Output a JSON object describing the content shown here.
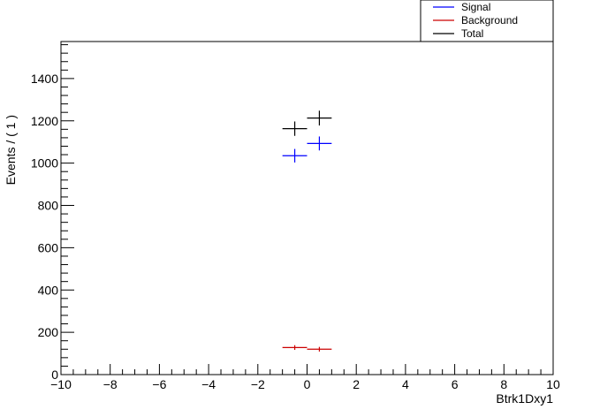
{
  "chart_data": {
    "type": "scatter",
    "title": "",
    "xlabel": "Btrk1Dxy1",
    "ylabel": "Events / ( 1 )",
    "xlim": [
      -10,
      10
    ],
    "ylim": [
      0,
      1575
    ],
    "x_ticks": [
      -10,
      -8,
      -6,
      -4,
      -2,
      0,
      2,
      4,
      6,
      8,
      10
    ],
    "x_tick_labels": [
      "−10",
      "−8",
      "−6",
      "−4",
      "−2",
      "0",
      "2",
      "4",
      "6",
      "8",
      "10"
    ],
    "y_ticks": [
      0,
      200,
      400,
      600,
      800,
      1000,
      1200,
      1400
    ],
    "y_tick_labels": [
      "0",
      "200",
      "400",
      "600",
      "800",
      "1000",
      "1200",
      "1400"
    ],
    "grid": false,
    "legend_position": "top-right",
    "series": [
      {
        "name": "Signal",
        "color": "#0000ff",
        "points": [
          {
            "x": -0.5,
            "xerr": 0.5,
            "y": 1035,
            "yerr": 32
          },
          {
            "x": 0.5,
            "xerr": 0.5,
            "y": 1093,
            "yerr": 33
          }
        ]
      },
      {
        "name": "Background",
        "color": "#cc0000",
        "points": [
          {
            "x": -0.5,
            "xerr": 0.5,
            "y": 128,
            "yerr": 11
          },
          {
            "x": 0.5,
            "xerr": 0.5,
            "y": 120,
            "yerr": 11
          }
        ]
      },
      {
        "name": "Total",
        "color": "#000000",
        "points": [
          {
            "x": -0.5,
            "xerr": 0.5,
            "y": 1163,
            "yerr": 34
          },
          {
            "x": 0.5,
            "xerr": 0.5,
            "y": 1213,
            "yerr": 35
          }
        ]
      }
    ]
  }
}
